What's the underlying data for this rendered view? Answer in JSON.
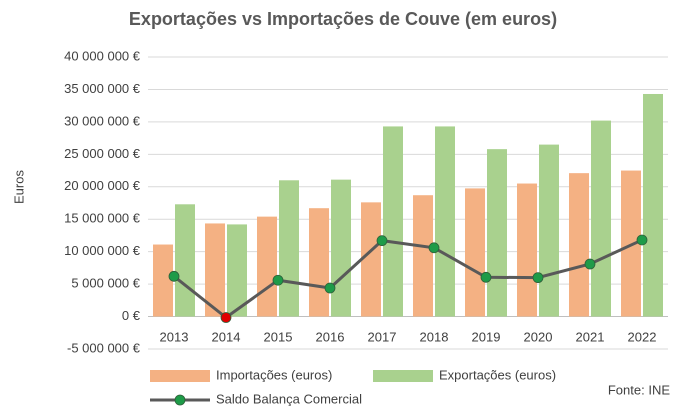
{
  "chart_data": {
    "type": "bar-line",
    "title": "Exportações vs Importações de Couve (em euros)",
    "y_label": "Euros",
    "source": "Fonte: INE",
    "categories": [
      "2013",
      "2014",
      "2015",
      "2016",
      "2017",
      "2018",
      "2019",
      "2020",
      "2021",
      "2022"
    ],
    "series": [
      {
        "name": "Importações (euros)",
        "type": "bar",
        "color": "#f4b183",
        "values": [
          11100000,
          14350000,
          15400000,
          16700000,
          17600000,
          18700000,
          19750000,
          20500000,
          22100000,
          22500000
        ]
      },
      {
        "name": "Exportações (euros)",
        "type": "bar",
        "color": "#a9d18e",
        "values": [
          17300000,
          14200000,
          21000000,
          21100000,
          29300000,
          29300000,
          25800000,
          26500000,
          30200000,
          34300000
        ]
      },
      {
        "name": "Saldo Balança Comercial",
        "type": "line",
        "color": "#595959",
        "marker_color": "#1e9b48",
        "marker_colors": [
          "#1e9b48",
          "#e00000",
          "#1e9b48",
          "#1e9b48",
          "#1e9b48",
          "#1e9b48",
          "#1e9b48",
          "#1e9b48",
          "#1e9b48",
          "#1e9b48"
        ],
        "values": [
          6200000,
          -150000,
          5600000,
          4400000,
          11700000,
          10600000,
          6050000,
          6000000,
          8100000,
          11800000
        ]
      }
    ],
    "ylim": [
      -5000000,
      40000000
    ],
    "yticks": [
      {
        "value": -5000000,
        "label": "-5 000 000 €"
      },
      {
        "value": 0,
        "label": "0 €"
      },
      {
        "value": 5000000,
        "label": "5 000 000 €"
      },
      {
        "value": 10000000,
        "label": "10 000 000 €"
      },
      {
        "value": 15000000,
        "label": "15 000 000 €"
      },
      {
        "value": 20000000,
        "label": "20 000 000 €"
      },
      {
        "value": 25000000,
        "label": "25 000 000 €"
      },
      {
        "value": 30000000,
        "label": "30 000 000 €"
      },
      {
        "value": 35000000,
        "label": "35 000 000 €"
      },
      {
        "value": 40000000,
        "label": "40 000 000 €"
      }
    ],
    "grid": true
  }
}
